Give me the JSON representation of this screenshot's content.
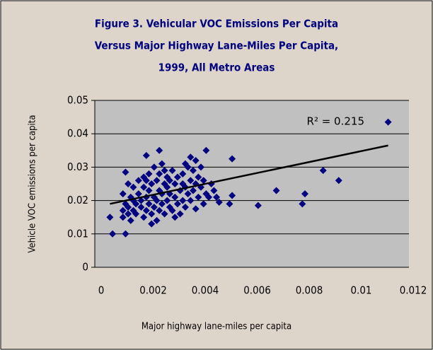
{
  "chart_data": {
    "type": "scatter",
    "title": [
      "Figure 3. Vehicular VOC Emissions Per Capita",
      "Versus Major Highway Lane-Miles Per Capita,",
      "1999, All Metro Areas"
    ],
    "xlabel": "Major highway lane-miles per capita",
    "ylabel": "Vehicle VOC emissions per capita",
    "annotation": "R² = 0.215",
    "color": "#000080",
    "trend_color": "#000000",
    "grid": true,
    "xlim": [
      0,
      0.012
    ],
    "xticks": [
      0,
      0.002,
      0.004,
      0.006,
      0.008,
      0.01,
      0.012
    ],
    "ylim": [
      0,
      0.05
    ],
    "yticks": [
      0,
      0.01,
      0.02,
      0.03,
      0.04,
      0.05
    ],
    "trendline": {
      "x": [
        0.0005,
        0.0112
      ],
      "y": [
        0.019,
        0.0365
      ]
    },
    "x": [
      0.0112,
      0.0005,
      0.0006,
      0.0011,
      0.0011,
      0.0019,
      0.0024,
      0.0042,
      0.0052,
      0.0051,
      0.0052,
      0.0062,
      0.0069,
      0.0079,
      0.008,
      0.0087,
      0.0093,
      0.0045,
      0.0047,
      0.0043,
      0.0038,
      0.004,
      0.0036,
      0.001,
      0.001,
      0.001,
      0.0011,
      0.0012,
      0.0012,
      0.0013,
      0.0013,
      0.0014,
      0.0014,
      0.0015,
      0.0015,
      0.0016,
      0.0016,
      0.0017,
      0.0017,
      0.0018,
      0.0018,
      0.0018,
      0.0019,
      0.0019,
      0.002,
      0.002,
      0.002,
      0.0021,
      0.0021,
      0.0022,
      0.0022,
      0.0022,
      0.0023,
      0.0023,
      0.0023,
      0.0024,
      0.0024,
      0.0024,
      0.0025,
      0.0025,
      0.0025,
      0.0026,
      0.0026,
      0.0027,
      0.0027,
      0.0027,
      0.0028,
      0.0028,
      0.0029,
      0.0029,
      0.003,
      0.003,
      0.0031,
      0.0031,
      0.0032,
      0.0032,
      0.0033,
      0.0033,
      0.0034,
      0.0034,
      0.0035,
      0.0035,
      0.0036,
      0.0036,
      0.0037,
      0.0037,
      0.0038,
      0.0039,
      0.0039,
      0.004,
      0.0041,
      0.0041,
      0.0042,
      0.0044,
      0.0046,
      0.0012,
      0.0014,
      0.0019,
      0.0021,
      0.0026,
      0.0028,
      0.003,
      0.0033,
      0.0034,
      0.0038
    ],
    "values": [
      0.0435,
      0.015,
      0.01,
      0.01,
      0.0285,
      0.0335,
      0.035,
      0.035,
      0.0325,
      0.019,
      0.0215,
      0.0185,
      0.023,
      0.019,
      0.022,
      0.029,
      0.026,
      0.023,
      0.0195,
      0.021,
      0.0175,
      0.03,
      0.033,
      0.015,
      0.017,
      0.022,
      0.019,
      0.016,
      0.018,
      0.021,
      0.014,
      0.017,
      0.024,
      0.019,
      0.016,
      0.022,
      0.026,
      0.018,
      0.02,
      0.015,
      0.024,
      0.027,
      0.021,
      0.017,
      0.019,
      0.023,
      0.028,
      0.016,
      0.025,
      0.018,
      0.021,
      0.03,
      0.014,
      0.02,
      0.026,
      0.017,
      0.023,
      0.028,
      0.019,
      0.022,
      0.031,
      0.016,
      0.025,
      0.02,
      0.024,
      0.027,
      0.018,
      0.022,
      0.029,
      0.017,
      0.021,
      0.025,
      0.019,
      0.027,
      0.023,
      0.016,
      0.02,
      0.028,
      0.024,
      0.018,
      0.022,
      0.03,
      0.026,
      0.02,
      0.023,
      0.029,
      0.025,
      0.021,
      0.027,
      0.024,
      0.019,
      0.026,
      0.022,
      0.025,
      0.021,
      0.025,
      0.02,
      0.026,
      0.013,
      0.029,
      0.026,
      0.015,
      0.025,
      0.031,
      0.032
    ]
  }
}
